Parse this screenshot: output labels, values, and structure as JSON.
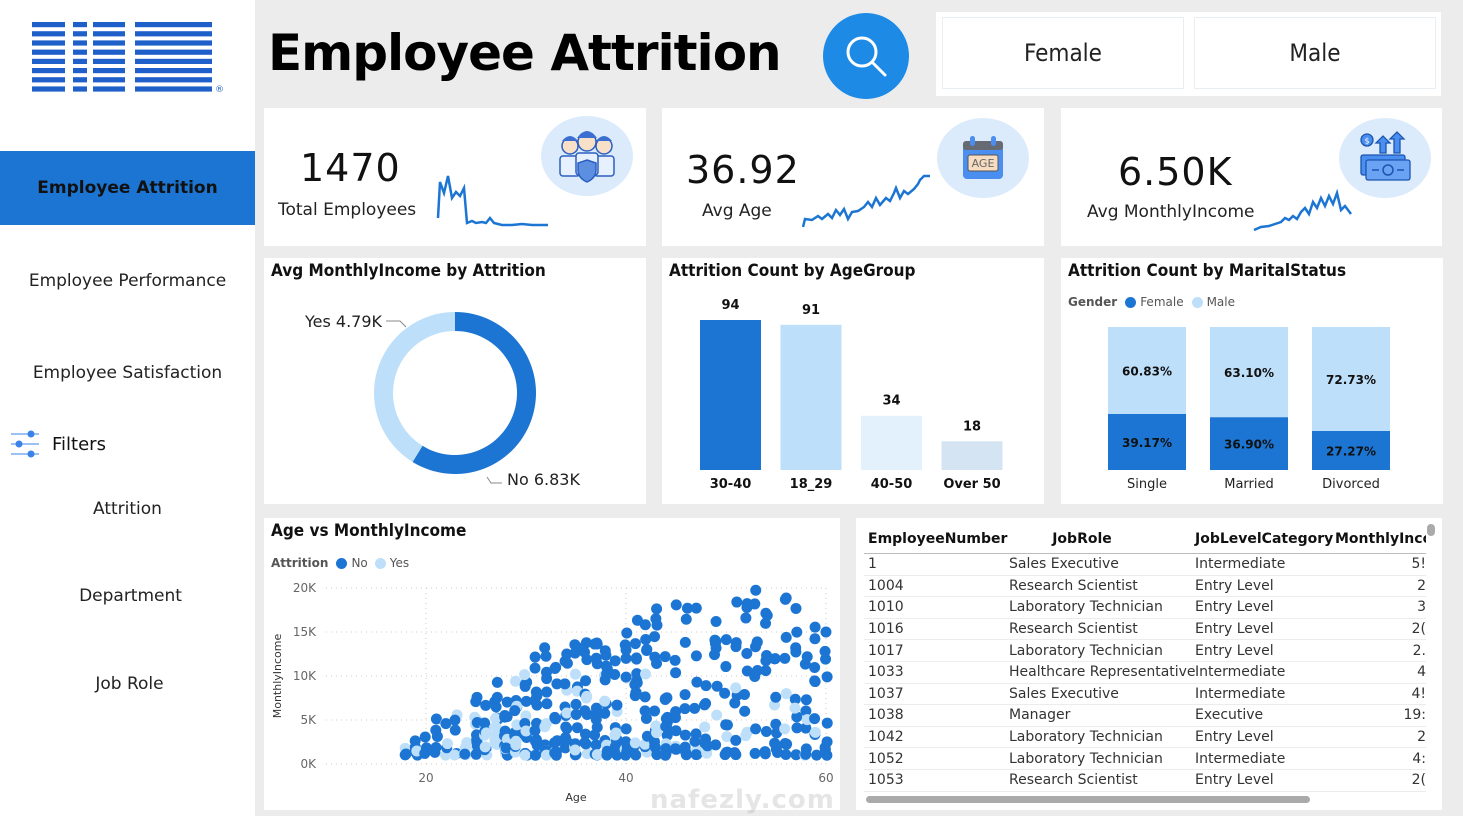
{
  "brand": {
    "name": "IBM",
    "color": "#1f5fc9"
  },
  "sidebar": {
    "items": [
      {
        "label": "Employee Attrition",
        "active": true
      },
      {
        "label": "Employee Performance"
      },
      {
        "label": "Employee Satisfaction"
      }
    ],
    "filters_label": "Filters",
    "filter_items": [
      {
        "label": "Attrition"
      },
      {
        "label": "Department"
      },
      {
        "label": "Job Role"
      }
    ]
  },
  "header": {
    "title": "Employee Attrition",
    "search_icon": "search-icon",
    "gender_buttons": [
      {
        "label": "Female"
      },
      {
        "label": "Male"
      }
    ]
  },
  "colors": {
    "primary": "#1c75d3",
    "light": "#bddff9",
    "lighter": "#e3f1fc",
    "pale": "#d5e4f2",
    "accent": "#1d8ae6",
    "icon_bg": "#dcebfb"
  },
  "kpis": [
    {
      "value": "1470",
      "label": "Total Employees",
      "icon": "team-shield-icon"
    },
    {
      "value": "36.92",
      "label": "Avg Age",
      "icon": "age-calendar-icon"
    },
    {
      "value": "6.50K",
      "label": "Avg MonthlyIncome",
      "icon": "money-growth-icon"
    }
  ],
  "chart_data": [
    {
      "type": "pie",
      "variant": "donut",
      "title": "Avg MonthlyIncome by Attrition",
      "categories": [
        "No",
        "Yes"
      ],
      "values": [
        6830,
        4790
      ],
      "labels": [
        "No 6.83K",
        "Yes 4.79K"
      ]
    },
    {
      "type": "bar",
      "title": "Attrition Count by AgeGroup",
      "categories": [
        "30-40",
        "18_29",
        "40-50",
        "Over 50"
      ],
      "values": [
        94,
        91,
        34,
        18
      ],
      "xlabel": "",
      "ylabel": "",
      "ylim": [
        0,
        94
      ]
    },
    {
      "type": "bar",
      "stacked": "100%",
      "title": "Attrition Count by MaritalStatus",
      "legend_title": "Gender",
      "legend_position": "top-left",
      "categories": [
        "Single",
        "Married",
        "Divorced"
      ],
      "series": [
        {
          "name": "Female",
          "values": [
            39.17,
            36.9,
            27.27
          ],
          "labels": [
            "39.17%",
            "36.90%",
            "27.27%"
          ]
        },
        {
          "name": "Male",
          "values": [
            60.83,
            63.1,
            72.73
          ],
          "labels": [
            "60.83%",
            "63.10%",
            "72.73%"
          ]
        }
      ]
    },
    {
      "type": "scatter",
      "title": "Age vs MonthlyIncome",
      "legend_title": "Attrition",
      "legend_position": "top-left",
      "series": [
        {
          "name": "No"
        },
        {
          "name": "Yes"
        }
      ],
      "xlabel": "Age",
      "ylabel": "MonthlyIncome",
      "xlim": [
        10,
        60
      ],
      "ylim": [
        0,
        20000
      ],
      "xticks": [
        "20",
        "40",
        "60"
      ],
      "yticks": [
        "0K",
        "5K",
        "10K",
        "15K",
        "20K"
      ],
      "grid": true
    }
  ],
  "table": {
    "columns": [
      "EmployeeNumber",
      "JobRole",
      "JobLevelCategory",
      "MonthlyInco"
    ],
    "rows": [
      [
        "1",
        "Sales Executive",
        "Intermediate",
        "5!"
      ],
      [
        "1004",
        "Research Scientist",
        "Entry Level",
        "2"
      ],
      [
        "1010",
        "Laboratory Technician",
        "Entry Level",
        "3"
      ],
      [
        "1016",
        "Research Scientist",
        "Entry Level",
        "2("
      ],
      [
        "1017",
        "Laboratory Technician",
        "Entry Level",
        "2."
      ],
      [
        "1033",
        "Healthcare Representative",
        "Intermediate",
        "4"
      ],
      [
        "1037",
        "Sales Executive",
        "Intermediate",
        "4!"
      ],
      [
        "1038",
        "Manager",
        "Executive",
        "19:"
      ],
      [
        "1042",
        "Laboratory Technician",
        "Entry Level",
        "2"
      ],
      [
        "1052",
        "Laboratory Technician",
        "Intermediate",
        "4:"
      ],
      [
        "1053",
        "Research Scientist",
        "Entry Level",
        "2("
      ]
    ]
  },
  "watermark": "nafezly.com"
}
